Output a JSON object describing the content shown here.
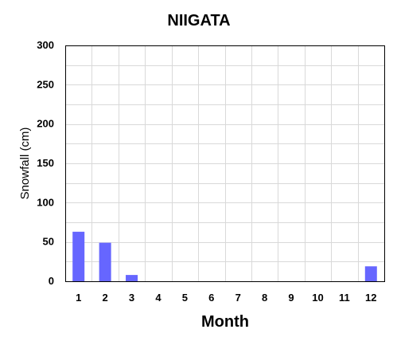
{
  "chart_data": {
    "type": "bar",
    "title": "NIIGATA",
    "xlabel": "Month",
    "ylabel": "Snowfall (cm)",
    "categories": [
      "1",
      "2",
      "3",
      "4",
      "5",
      "6",
      "7",
      "8",
      "9",
      "10",
      "11",
      "12"
    ],
    "values": [
      63,
      49,
      8,
      0,
      0,
      0,
      0,
      0,
      0,
      0,
      0,
      19
    ],
    "ylim": [
      0,
      300
    ],
    "yticks": [
      0,
      50,
      100,
      150,
      200,
      250,
      300
    ],
    "grid": true,
    "legend": "none",
    "colors": {
      "bar": "#6666ff",
      "grid": "#d9d9d9",
      "axis": "#000000"
    }
  }
}
